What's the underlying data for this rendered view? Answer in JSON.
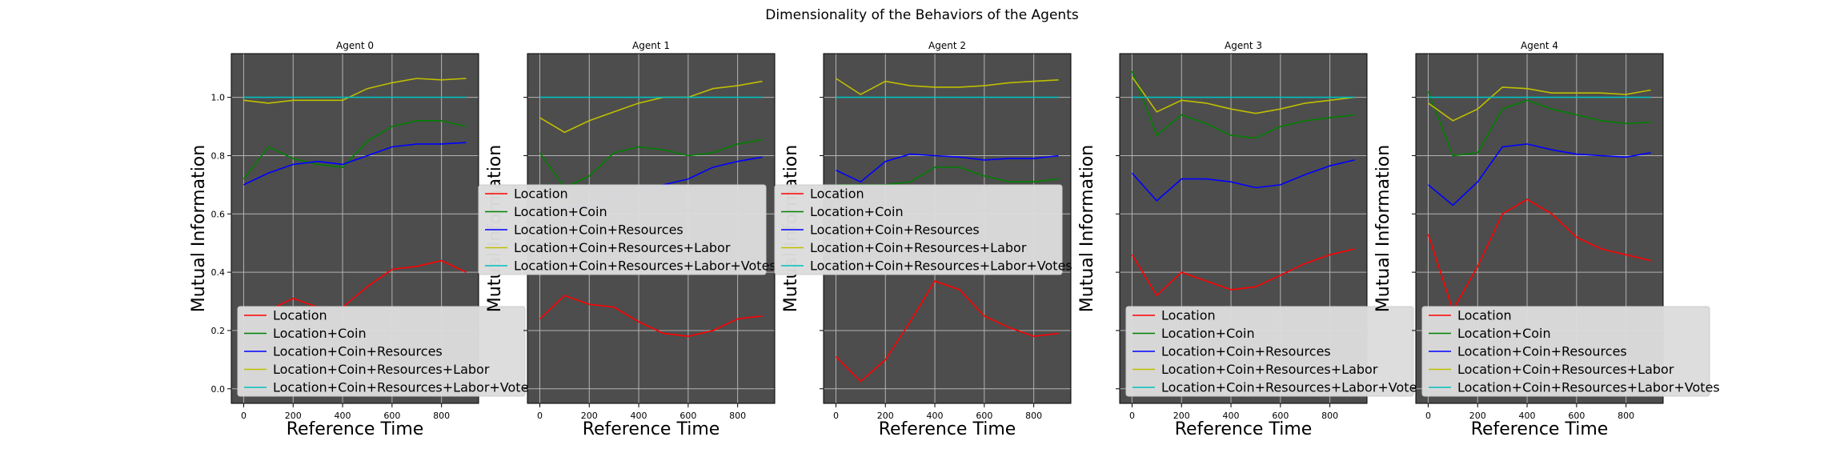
{
  "figure": {
    "title": "Dimensionality of the Behaviors of the Agents"
  },
  "colors": {
    "panel_bg": "#4d4d4d",
    "grid": "#b3b3b3",
    "legend_bg": "#dcdcdc",
    "series": [
      "#ff0000",
      "#008000",
      "#0000ff",
      "#bfbf00",
      "#00bfbf"
    ]
  },
  "chart_data": [
    {
      "type": "line",
      "title": "Agent 0",
      "xlabel": "Reference Time",
      "ylabel": "Mutual Information",
      "xlim": [
        -50,
        950
      ],
      "ylim": [
        -0.05,
        1.15
      ],
      "xticks": [
        0,
        200,
        400,
        600,
        800
      ],
      "yticks": [
        0.0,
        0.2,
        0.4,
        0.6,
        0.8,
        1.0
      ],
      "ytick_labels": [
        "0.0",
        "0.2",
        "0.4",
        "0.6",
        "0.8",
        "1.0"
      ],
      "grid": true,
      "legend_placement": "lower left",
      "x": [
        0,
        100,
        200,
        300,
        400,
        500,
        600,
        700,
        800,
        900
      ],
      "series": [
        {
          "name": "Location",
          "values": [
            0.25,
            0.27,
            0.31,
            0.28,
            0.28,
            0.35,
            0.41,
            0.42,
            0.44,
            0.4
          ]
        },
        {
          "name": "Location+Coin",
          "values": [
            0.72,
            0.83,
            0.79,
            0.77,
            0.76,
            0.85,
            0.9,
            0.92,
            0.92,
            0.9
          ]
        },
        {
          "name": "Location+Coin+Resources",
          "values": [
            0.7,
            0.74,
            0.77,
            0.78,
            0.77,
            0.8,
            0.83,
            0.84,
            0.84,
            0.845
          ]
        },
        {
          "name": "Location+Coin+Resources+Labor",
          "values": [
            0.99,
            0.98,
            0.99,
            0.99,
            0.99,
            1.03,
            1.05,
            1.065,
            1.06,
            1.065
          ]
        },
        {
          "name": "Location+Coin+Resources+Labor+Votes",
          "values": [
            1.0,
            1.0,
            1.0,
            1.0,
            1.0,
            1.0,
            1.0,
            1.0,
            1.0,
            1.0
          ]
        }
      ]
    },
    {
      "type": "line",
      "title": "Agent 1",
      "xlabel": "Reference Time",
      "ylabel": "Mutual Information",
      "xlim": [
        -50,
        950
      ],
      "ylim": [
        -0.05,
        1.15
      ],
      "xticks": [
        0,
        200,
        400,
        600,
        800
      ],
      "yticks": [
        0.0,
        0.2,
        0.4,
        0.6,
        0.8,
        1.0
      ],
      "ytick_labels": [],
      "grid": true,
      "legend_placement": "center left",
      "x": [
        0,
        100,
        200,
        300,
        400,
        500,
        600,
        700,
        800,
        900
      ],
      "series": [
        {
          "name": "Location",
          "values": [
            0.24,
            0.32,
            0.29,
            0.28,
            0.23,
            0.19,
            0.18,
            0.2,
            0.24,
            0.25
          ]
        },
        {
          "name": "Location+Coin",
          "values": [
            0.81,
            0.69,
            0.73,
            0.81,
            0.83,
            0.82,
            0.8,
            0.81,
            0.84,
            0.855
          ]
        },
        {
          "name": "Location+Coin+Resources",
          "values": [
            0.62,
            0.62,
            0.63,
            0.65,
            0.68,
            0.7,
            0.72,
            0.76,
            0.78,
            0.795
          ]
        },
        {
          "name": "Location+Coin+Resources+Labor",
          "values": [
            0.93,
            0.88,
            0.92,
            0.95,
            0.98,
            1.0,
            1.0,
            1.03,
            1.04,
            1.055
          ]
        },
        {
          "name": "Location+Coin+Resources+Labor+Votes",
          "values": [
            1.0,
            1.0,
            1.0,
            1.0,
            1.0,
            1.0,
            1.0,
            1.0,
            1.0,
            1.0
          ]
        }
      ]
    },
    {
      "type": "line",
      "title": "Agent 2",
      "xlabel": "Reference Time",
      "ylabel": "Mutual Information",
      "xlim": [
        -50,
        950
      ],
      "ylim": [
        -0.05,
        1.15
      ],
      "xticks": [
        0,
        200,
        400,
        600,
        800
      ],
      "yticks": [
        0.0,
        0.2,
        0.4,
        0.6,
        0.8,
        1.0
      ],
      "ytick_labels": [],
      "grid": true,
      "legend_placement": "center left",
      "x": [
        0,
        100,
        200,
        300,
        400,
        500,
        600,
        700,
        800,
        900
      ],
      "series": [
        {
          "name": "Location",
          "values": [
            0.11,
            0.025,
            0.1,
            0.23,
            0.37,
            0.34,
            0.25,
            0.21,
            0.18,
            0.19
          ]
        },
        {
          "name": "Location+Coin",
          "values": [
            0.7,
            0.7,
            0.7,
            0.71,
            0.76,
            0.76,
            0.73,
            0.71,
            0.71,
            0.72
          ]
        },
        {
          "name": "Location+Coin+Resources",
          "values": [
            0.75,
            0.71,
            0.78,
            0.805,
            0.8,
            0.795,
            0.785,
            0.79,
            0.79,
            0.8
          ]
        },
        {
          "name": "Location+Coin+Resources+Labor",
          "values": [
            1.065,
            1.01,
            1.055,
            1.04,
            1.035,
            1.035,
            1.04,
            1.05,
            1.055,
            1.06
          ]
        },
        {
          "name": "Location+Coin+Resources+Labor+Votes",
          "values": [
            1.0,
            1.0,
            1.0,
            1.0,
            1.0,
            1.0,
            1.0,
            1.0,
            1.0,
            1.0
          ]
        }
      ]
    },
    {
      "type": "line",
      "title": "Agent 3",
      "xlabel": "Reference Time",
      "ylabel": "Mutual Information",
      "xlim": [
        -50,
        950
      ],
      "ylim": [
        -0.05,
        1.15
      ],
      "xticks": [
        0,
        200,
        400,
        600,
        800
      ],
      "yticks": [
        0.0,
        0.2,
        0.4,
        0.6,
        0.8,
        1.0
      ],
      "ytick_labels": [],
      "grid": true,
      "legend_placement": "lower left",
      "x": [
        0,
        100,
        200,
        300,
        400,
        500,
        600,
        700,
        800,
        900
      ],
      "series": [
        {
          "name": "Location",
          "values": [
            0.46,
            0.32,
            0.4,
            0.37,
            0.34,
            0.35,
            0.39,
            0.43,
            0.46,
            0.48
          ]
        },
        {
          "name": "Location+Coin",
          "values": [
            1.09,
            0.87,
            0.94,
            0.91,
            0.87,
            0.86,
            0.9,
            0.92,
            0.93,
            0.94
          ]
        },
        {
          "name": "Location+Coin+Resources",
          "values": [
            0.74,
            0.645,
            0.72,
            0.72,
            0.71,
            0.69,
            0.7,
            0.735,
            0.765,
            0.785
          ]
        },
        {
          "name": "Location+Coin+Resources+Labor",
          "values": [
            1.07,
            0.95,
            0.99,
            0.98,
            0.96,
            0.945,
            0.96,
            0.98,
            0.99,
            1.0
          ]
        },
        {
          "name": "Location+Coin+Resources+Labor+Votes",
          "values": [
            1.0,
            1.0,
            1.0,
            1.0,
            1.0,
            1.0,
            1.0,
            1.0,
            1.0,
            1.0
          ]
        }
      ]
    },
    {
      "type": "line",
      "title": "Agent 4",
      "xlabel": "Reference Time",
      "ylabel": "Mutual Information",
      "xlim": [
        -50,
        950
      ],
      "ylim": [
        -0.05,
        1.15
      ],
      "xticks": [
        0,
        200,
        400,
        600,
        800
      ],
      "yticks": [
        0.0,
        0.2,
        0.4,
        0.6,
        0.8,
        1.0
      ],
      "ytick_labels": [],
      "grid": true,
      "legend_placement": "lower left",
      "x": [
        0,
        100,
        200,
        300,
        400,
        500,
        600,
        700,
        800,
        900
      ],
      "series": [
        {
          "name": "Location",
          "values": [
            0.53,
            0.27,
            0.42,
            0.6,
            0.65,
            0.6,
            0.52,
            0.48,
            0.46,
            0.44
          ]
        },
        {
          "name": "Location+Coin",
          "values": [
            1.02,
            0.8,
            0.81,
            0.96,
            0.99,
            0.96,
            0.94,
            0.92,
            0.91,
            0.915
          ]
        },
        {
          "name": "Location+Coin+Resources",
          "values": [
            0.7,
            0.63,
            0.71,
            0.83,
            0.84,
            0.82,
            0.805,
            0.8,
            0.795,
            0.81
          ]
        },
        {
          "name": "Location+Coin+Resources+Labor",
          "values": [
            0.98,
            0.92,
            0.96,
            1.035,
            1.03,
            1.015,
            1.015,
            1.015,
            1.01,
            1.025
          ]
        },
        {
          "name": "Location+Coin+Resources+Labor+Votes",
          "values": [
            1.0,
            1.0,
            1.0,
            1.0,
            1.0,
            1.0,
            1.0,
            1.0,
            1.0,
            1.0
          ]
        }
      ]
    }
  ]
}
